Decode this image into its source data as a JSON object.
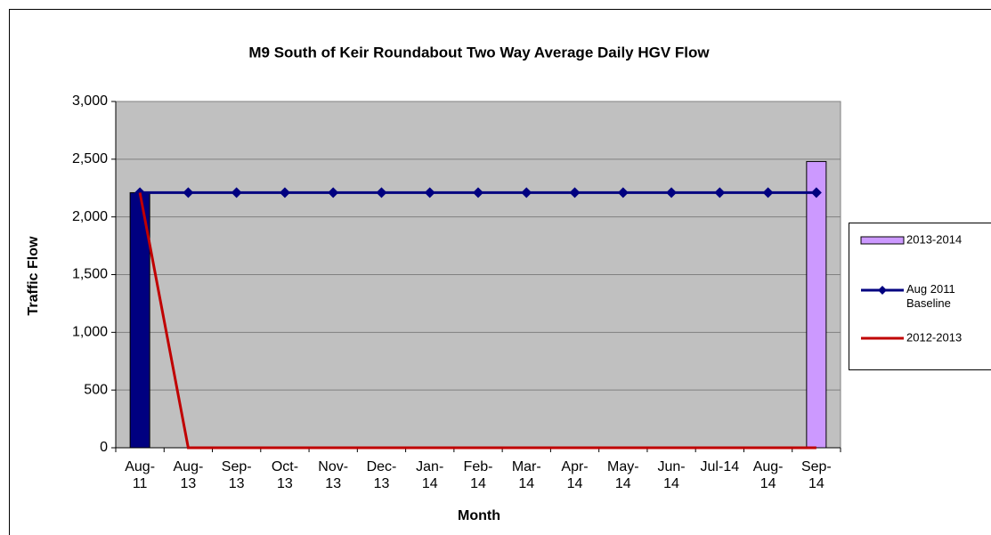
{
  "chart_data": {
    "type": "bar_line",
    "title": "M9 South of Keir Roundabout Two Way Average Daily HGV Flow",
    "x_label": "Month",
    "y_label": "Traffic Flow",
    "categories": [
      "Aug-11",
      "Aug-13",
      "Sep-13",
      "Oct-13",
      "Nov-13",
      "Dec-13",
      "Jan-14",
      "Feb-14",
      "Mar-14",
      "Apr-14",
      "May-14",
      "Jun-14",
      "Jul-14",
      "Aug-14",
      "Sep-14"
    ],
    "ylim": [
      0,
      3000
    ],
    "yticks": [
      0,
      {
        "value": 500,
        "label": "500"
      },
      {
        "value": 1000,
        "label": "1,000"
      },
      {
        "value": 1500,
        "label": "1,500"
      },
      {
        "value": 2000,
        "label": "2,000"
      },
      {
        "value": 2500,
        "label": "2,500"
      },
      {
        "value": 3000,
        "label": "3,000"
      }
    ],
    "grid": true,
    "legend": "right",
    "series": [
      {
        "name": "2013-2014",
        "kind": "bar",
        "color": "#cc99ff",
        "colors": [
          "#000080",
          "#cc99ff",
          "#cc99ff",
          "#cc99ff",
          "#cc99ff",
          "#cc99ff",
          "#cc99ff",
          "#cc99ff",
          "#cc99ff",
          "#cc99ff",
          "#cc99ff",
          "#cc99ff",
          "#cc99ff",
          "#cc99ff",
          "#cc99ff"
        ],
        "values": [
          2210,
          null,
          null,
          null,
          null,
          null,
          null,
          null,
          null,
          null,
          null,
          null,
          null,
          null,
          2480
        ]
      },
      {
        "name": "Aug 2011 Baseline",
        "kind": "line",
        "marker": "diamond",
        "color": "#000080",
        "values": [
          2210,
          2210,
          2210,
          2210,
          2210,
          2210,
          2210,
          2210,
          2210,
          2210,
          2210,
          2210,
          2210,
          2210,
          2210
        ]
      },
      {
        "name": "2012-2013",
        "kind": "line",
        "color": "#c00000",
        "values": [
          2210,
          0,
          0,
          0,
          0,
          0,
          0,
          0,
          0,
          0,
          0,
          0,
          0,
          0,
          0
        ]
      }
    ]
  }
}
